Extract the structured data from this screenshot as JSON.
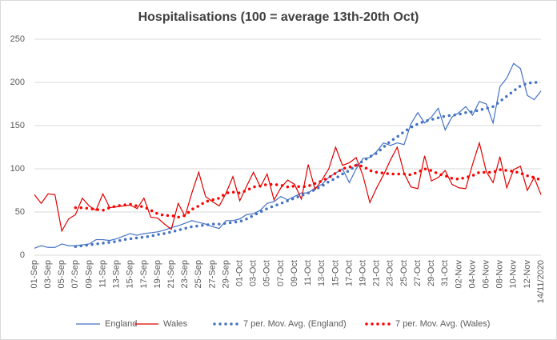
{
  "chart_data": {
    "type": "line",
    "title": "Hospitalisations (100 = average 13th-20th Oct)",
    "categories": [
      "01-Sep",
      null,
      "03-Sep",
      null,
      "05-Sep",
      null,
      "07-Sep",
      null,
      "09-Sep",
      null,
      "11-Sep",
      null,
      "13-Sep",
      null,
      "15-Sep",
      null,
      "17-Sep",
      null,
      "19-Sep",
      null,
      "21-Sep",
      null,
      "23-Sep",
      null,
      "25-Sep",
      null,
      "27-Sep",
      null,
      "29-Sep",
      null,
      "01-Oct",
      null,
      "03-Oct",
      null,
      "05-Oct",
      null,
      "07-Oct",
      null,
      "09-Oct",
      null,
      "11-Oct",
      null,
      "13-Oct",
      null,
      "15-Oct",
      null,
      "17-Oct",
      null,
      "19-Oct",
      null,
      "21-Oct",
      null,
      "23-Oct",
      null,
      "25-Oct",
      null,
      "27-Oct",
      null,
      "29-Oct",
      null,
      "31-Oct",
      null,
      "02-Nov",
      null,
      "04-Nov",
      null,
      "06-Nov",
      null,
      "08-Nov",
      null,
      "10-Nov",
      null,
      "12-Nov",
      null,
      "14/11/2020"
    ],
    "series": [
      {
        "name": "England",
        "color": "#4472c4",
        "line_style": "solid",
        "values": [
          8,
          11,
          9,
          9,
          13,
          11,
          11,
          12,
          13,
          18,
          18,
          17,
          19,
          22,
          25,
          23,
          25,
          26,
          27,
          29,
          32,
          34,
          37,
          40,
          38,
          36,
          33,
          31,
          40,
          40,
          42,
          47,
          48,
          52,
          60,
          62,
          68,
          64,
          68,
          72,
          72,
          78,
          82,
          90,
          95,
          100,
          84,
          100,
          112,
          113,
          120,
          130,
          127,
          130,
          128,
          152,
          165,
          153,
          160,
          170,
          145,
          160,
          165,
          172,
          162,
          178,
          175,
          153,
          195,
          205,
          222,
          216,
          185,
          180,
          190
        ]
      },
      {
        "name": "Wales",
        "color": "#e00000",
        "line_style": "solid",
        "values": [
          70,
          60,
          71,
          70,
          28,
          42,
          47,
          66,
          57,
          52,
          71,
          55,
          56,
          57,
          58,
          54,
          66,
          44,
          43,
          36,
          30,
          60,
          45,
          72,
          96,
          68,
          62,
          57,
          72,
          91,
          63,
          80,
          96,
          79,
          94,
          64,
          78,
          87,
          82,
          65,
          105,
          76,
          87,
          100,
          125,
          104,
          107,
          113,
          92,
          61,
          78,
          93,
          110,
          125,
          95,
          79,
          77,
          115,
          86,
          90,
          98,
          82,
          78,
          77,
          105,
          130,
          97,
          84,
          114,
          78,
          99,
          103,
          75,
          90,
          70
        ]
      },
      {
        "name": "7 per. Mov. Avg. (England)",
        "color": "#4472c4",
        "line_style": "dotted",
        "values": [
          null,
          null,
          null,
          null,
          null,
          null,
          10,
          11,
          12,
          13,
          14,
          15,
          16,
          18,
          19,
          20,
          21,
          22,
          24,
          25,
          27,
          29,
          31,
          33,
          34,
          35,
          36,
          36,
          37,
          38,
          39,
          42,
          46,
          50,
          54,
          57,
          60,
          63,
          66,
          69,
          72,
          76,
          80,
          85,
          89,
          94,
          98,
          104,
          109,
          114,
          118,
          125,
          132,
          137,
          143,
          148,
          152,
          155,
          157,
          159,
          161,
          162,
          163,
          165,
          166,
          168,
          170,
          172,
          178,
          184,
          190,
          196,
          199,
          200,
          200
        ]
      },
      {
        "name": "7 per. Mov. Avg. (Wales)",
        "color": "#ff0000",
        "line_style": "dotted",
        "values": [
          null,
          null,
          null,
          null,
          null,
          null,
          55,
          55,
          54,
          53,
          52,
          55,
          57,
          58,
          59,
          57,
          56,
          52,
          48,
          46,
          46,
          44,
          46,
          53,
          57,
          62,
          64,
          66,
          72,
          73,
          72,
          75,
          79,
          80,
          82,
          82,
          81,
          79,
          80,
          79,
          80,
          83,
          86,
          90,
          95,
          100,
          102,
          104,
          103,
          98,
          96,
          95,
          94,
          94,
          94,
          93,
          96,
          100,
          98,
          94,
          92,
          89,
          88,
          90,
          92,
          96,
          96,
          96,
          99,
          98,
          97,
          95,
          92,
          90,
          87
        ]
      }
    ],
    "ylim": [
      0,
      250
    ],
    "yticks": [
      0,
      50,
      100,
      150,
      200,
      250
    ],
    "grid": true,
    "legend": "bottom"
  }
}
